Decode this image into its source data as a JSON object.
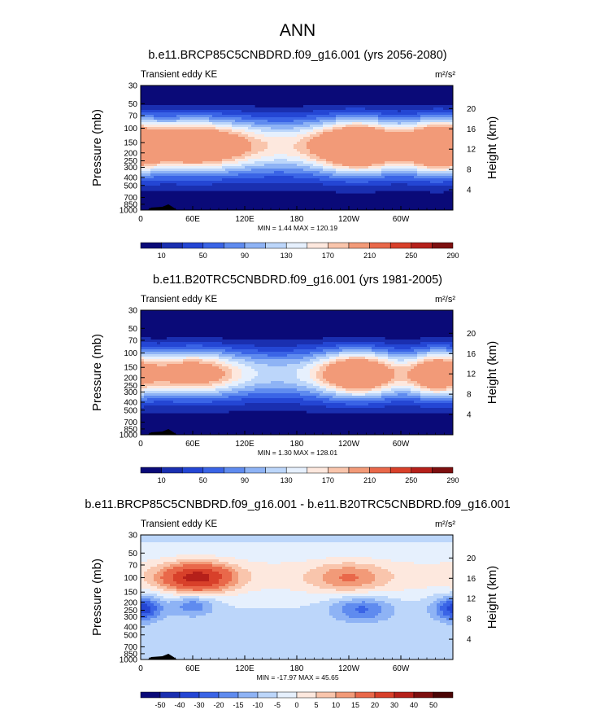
{
  "figure_title": "ANN",
  "chart_data": [
    {
      "type": "heatmap",
      "title": "b.e11.BRCP85C5CNBDRD.f09_g16.001 (yrs 2056-2080)",
      "left_label": "Transient eddy KE",
      "units": "m²/s²",
      "ylabel": "Pressure (mb)",
      "ylabel_right": "Height (km)",
      "x_ticks": [
        "0",
        "60E",
        "120E",
        "180",
        "120W",
        "60W"
      ],
      "y_ticks": [
        "30",
        "50",
        "70",
        "100",
        "150",
        "200",
        "250",
        "300",
        "400",
        "500",
        "700",
        "850",
        "1000"
      ],
      "y2_ticks": [
        "20",
        "16",
        "12",
        "8",
        "4"
      ],
      "stats": "MIN =   1.44  MAX = 120.19",
      "colorbar_labels": [
        "10",
        "50",
        "90",
        "130",
        "170",
        "210",
        "250",
        "290"
      ],
      "colorbar_colors": [
        "#0a0a78",
        "#1a2fb0",
        "#2446d4",
        "#3a64e6",
        "#5f8bef",
        "#8eb3f5",
        "#bcd6fa",
        "#e6f0fd",
        "#fde8de",
        "#f9c5ac",
        "#f29a78",
        "#e9684a",
        "#d8402a",
        "#b5201a",
        "#7d0f0f"
      ],
      "levels": [
        20,
        30,
        40,
        50,
        60,
        70,
        80,
        90,
        100,
        110
      ],
      "fill_colors": [
        "#1a2fb0",
        "#2446d4",
        "#3a64e6",
        "#5f8bef",
        "#8eb3f5",
        "#bcd6fa",
        "#e6f0fd",
        "#fde8de",
        "#f9c5ac",
        "#f29a78"
      ],
      "background_color": "#0a0a78",
      "jets": [
        {
          "lon": 55,
          "p": 160,
          "lon_sigma": 48,
          "logp_sigma": 0.5,
          "amp": 115
        },
        {
          "lon": 255,
          "p": 165,
          "lon_sigma": 36,
          "logp_sigma": 0.5,
          "amp": 120
        },
        {
          "lon": 340,
          "p": 165,
          "lon_sigma": 26,
          "logp_sigma": 0.5,
          "amp": 115
        },
        {
          "lon": 175,
          "p": 160,
          "lon_sigma": 75,
          "logp_sigma": 0.55,
          "amp": 55
        }
      ],
      "band": {
        "amp": 30,
        "p": 200,
        "logp_sigma": 0.9
      }
    },
    {
      "type": "heatmap",
      "title": "b.e11.B20TRC5CNBDRD.f09_g16.001 (yrs 1981-2005)",
      "left_label": "Transient eddy KE",
      "units": "m²/s²",
      "ylabel": "Pressure (mb)",
      "ylabel_right": "Height (km)",
      "x_ticks": [
        "0",
        "60E",
        "120E",
        "180",
        "120W",
        "60W"
      ],
      "y_ticks": [
        "30",
        "50",
        "70",
        "100",
        "150",
        "200",
        "250",
        "300",
        "400",
        "500",
        "700",
        "850",
        "1000"
      ],
      "y2_ticks": [
        "20",
        "16",
        "12",
        "8",
        "4"
      ],
      "stats": "MIN =   1.30  MAX = 128.01",
      "colorbar_labels": [
        "10",
        "50",
        "90",
        "130",
        "170",
        "210",
        "250",
        "290"
      ],
      "colorbar_colors": [
        "#0a0a78",
        "#1a2fb0",
        "#2446d4",
        "#3a64e6",
        "#5f8bef",
        "#8eb3f5",
        "#bcd6fa",
        "#e6f0fd",
        "#fde8de",
        "#f9c5ac",
        "#f29a78",
        "#e9684a",
        "#d8402a",
        "#b5201a",
        "#7d0f0f"
      ],
      "levels": [
        20,
        30,
        40,
        50,
        60,
        70,
        80,
        90,
        100,
        110
      ],
      "fill_colors": [
        "#1a2fb0",
        "#2446d4",
        "#3a64e6",
        "#5f8bef",
        "#8eb3f5",
        "#bcd6fa",
        "#e6f0fd",
        "#fde8de",
        "#f9c5ac",
        "#f29a78"
      ],
      "background_color": "#0a0a78",
      "jets": [
        {
          "lon": 55,
          "p": 175,
          "lon_sigma": 42,
          "logp_sigma": 0.45,
          "amp": 95
        },
        {
          "lon": 255,
          "p": 180,
          "lon_sigma": 34,
          "logp_sigma": 0.45,
          "amp": 105
        },
        {
          "lon": 340,
          "p": 180,
          "lon_sigma": 24,
          "logp_sigma": 0.45,
          "amp": 100
        },
        {
          "lon": 175,
          "p": 175,
          "lon_sigma": 75,
          "logp_sigma": 0.5,
          "amp": 45
        }
      ],
      "band": {
        "amp": 26,
        "p": 210,
        "logp_sigma": 0.85
      }
    },
    {
      "type": "heatmap",
      "title": "b.e11.BRCP85C5CNBDRD.f09_g16.001 - b.e11.B20TRC5CNBDRD.f09_g16.001",
      "left_label": "Transient eddy KE",
      "units": "m²/s²",
      "ylabel": "Pressure (mb)",
      "ylabel_right": "Height (km)",
      "x_ticks": [
        "0",
        "60E",
        "120E",
        "180",
        "120W",
        "60W"
      ],
      "y_ticks": [
        "30",
        "50",
        "70",
        "100",
        "150",
        "200",
        "250",
        "300",
        "400",
        "500",
        "700",
        "850",
        "1000"
      ],
      "y2_ticks": [
        "20",
        "16",
        "12",
        "8",
        "4"
      ],
      "stats": "MIN = -17.97  MAX =  45.65",
      "colorbar_labels": [
        "-50",
        "-40",
        "-30",
        "-20",
        "-15",
        "-10",
        "-5",
        "0",
        "5",
        "10",
        "15",
        "20",
        "30",
        "40",
        "50"
      ],
      "colorbar_colors": [
        "#0a0a78",
        "#1a2fb0",
        "#2446d4",
        "#3a64e6",
        "#5f8bef",
        "#8eb3f5",
        "#bcd6fa",
        "#e6f0fd",
        "#fde8de",
        "#f9c5ac",
        "#f29a78",
        "#e9684a",
        "#d8402a",
        "#b5201a",
        "#7d0f0f",
        "#4a0505"
      ],
      "levels": [
        -20,
        -15,
        -10,
        -5,
        0,
        5,
        10,
        15,
        20,
        30,
        40
      ],
      "fill_colors": [
        "#3a64e6",
        "#5f8bef",
        "#8eb3f5",
        "#bcd6fa",
        "#e6f0fd",
        "#fde8de",
        "#f9c5ac",
        "#f29a78",
        "#e9684a",
        "#d8402a",
        "#b5201a"
      ],
      "background_color": "#2446d4",
      "jets": [
        {
          "lon": 65,
          "p": 100,
          "lon_sigma": 28,
          "logp_sigma": 0.28,
          "amp": 38
        },
        {
          "lon": 240,
          "p": 100,
          "lon_sigma": 30,
          "logp_sigma": 0.3,
          "amp": 14
        },
        {
          "lon": 60,
          "p": 215,
          "lon_sigma": 18,
          "logp_sigma": 0.22,
          "amp": -14
        },
        {
          "lon": 255,
          "p": 240,
          "lon_sigma": 25,
          "logp_sigma": 0.25,
          "amp": -16
        },
        {
          "lon": 358,
          "p": 235,
          "lon_sigma": 18,
          "logp_sigma": 0.25,
          "amp": -13
        },
        {
          "lon": 5,
          "p": 240,
          "lon_sigma": 14,
          "logp_sigma": 0.25,
          "amp": -11
        }
      ],
      "band": {
        "amp": 8,
        "p": 95,
        "logp_sigma": 0.45
      },
      "offset": -1
    }
  ]
}
